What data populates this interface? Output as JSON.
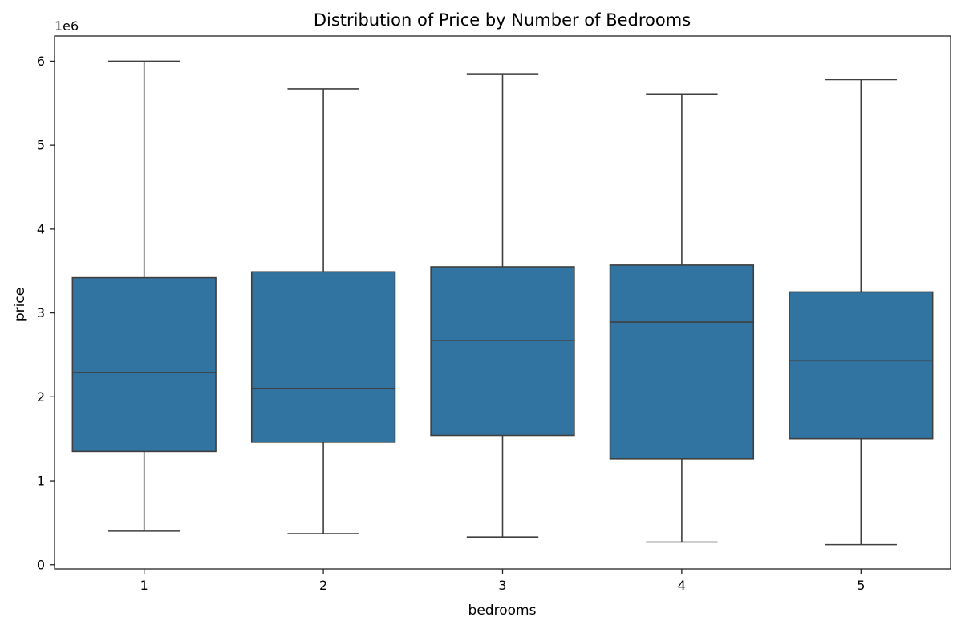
{
  "chart_data": {
    "type": "box",
    "title": "Distribution of Price by Number of Bedrooms",
    "xlabel": "bedrooms",
    "ylabel": "price",
    "y_offset_label": "1e6",
    "ylim": [
      -0.05,
      6.3
    ],
    "y_ticks": [
      0,
      1,
      2,
      3,
      4,
      5,
      6
    ],
    "categories": [
      "1",
      "2",
      "3",
      "4",
      "5"
    ],
    "boxes": [
      {
        "category": "1",
        "min": 0.4,
        "q1": 1.35,
        "median": 2.29,
        "q3": 3.42,
        "max": 6.0
      },
      {
        "category": "2",
        "min": 0.37,
        "q1": 1.46,
        "median": 2.1,
        "q3": 3.49,
        "max": 5.67
      },
      {
        "category": "3",
        "min": 0.33,
        "q1": 1.54,
        "median": 2.67,
        "q3": 3.55,
        "max": 5.85
      },
      {
        "category": "4",
        "min": 0.27,
        "q1": 1.26,
        "median": 2.89,
        "q3": 3.57,
        "max": 5.61
      },
      {
        "category": "5",
        "min": 0.24,
        "q1": 1.5,
        "median": 2.43,
        "q3": 3.25,
        "max": 5.78
      }
    ],
    "box_color": "#3274a1",
    "line_color": "#3f3f3f",
    "grid": false,
    "legend": "none"
  }
}
